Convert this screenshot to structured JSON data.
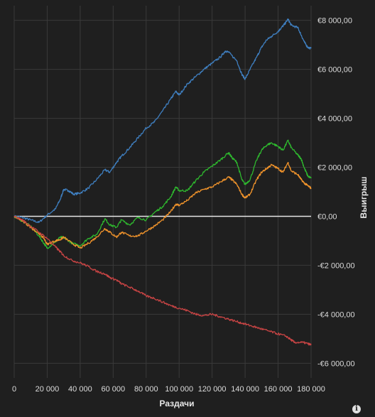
{
  "chart_data": {
    "type": "line",
    "xlabel": "Раздачи",
    "ylabel": "Выигрыш",
    "xlim": [
      0,
      180000
    ],
    "ylim": [
      -6600,
      8600
    ],
    "x_ticks": [
      0,
      20000,
      40000,
      60000,
      80000,
      100000,
      120000,
      140000,
      160000,
      180000
    ],
    "x_tick_labels": [
      "0",
      "20 000",
      "40 000",
      "60 000",
      "80 000",
      "100 000",
      "120 000",
      "140 000",
      "160 000",
      "180 000"
    ],
    "y_ticks": [
      -6000,
      -4000,
      -2000,
      0,
      2000,
      4000,
      6000,
      8000
    ],
    "y_tick_labels": [
      "-€6 000,00",
      "-€4 000,00",
      "-€2 000,00",
      "€0,00",
      "€2 000,00",
      "€4 000,00",
      "€6 000,00",
      "€8 000,00"
    ],
    "grid": true,
    "series": [
      {
        "color": "#3f7fc0",
        "points": [
          [
            0,
            0
          ],
          [
            5000,
            -50
          ],
          [
            10000,
            -150
          ],
          [
            15000,
            -250
          ],
          [
            20000,
            50
          ],
          [
            25000,
            300
          ],
          [
            28000,
            700
          ],
          [
            30000,
            1100
          ],
          [
            33000,
            1050
          ],
          [
            36000,
            900
          ],
          [
            40000,
            950
          ],
          [
            45000,
            1150
          ],
          [
            50000,
            1500
          ],
          [
            55000,
            1900
          ],
          [
            58000,
            1800
          ],
          [
            62000,
            2200
          ],
          [
            65000,
            2450
          ],
          [
            70000,
            2800
          ],
          [
            75000,
            3200
          ],
          [
            80000,
            3600
          ],
          [
            85000,
            3850
          ],
          [
            90000,
            4300
          ],
          [
            95000,
            4800
          ],
          [
            98000,
            5100
          ],
          [
            100000,
            4950
          ],
          [
            105000,
            5400
          ],
          [
            110000,
            5700
          ],
          [
            115000,
            6000
          ],
          [
            120000,
            6250
          ],
          [
            125000,
            6500
          ],
          [
            128000,
            6750
          ],
          [
            130000,
            6700
          ],
          [
            135000,
            6350
          ],
          [
            138000,
            5800
          ],
          [
            140000,
            5600
          ],
          [
            143000,
            6000
          ],
          [
            147000,
            6500
          ],
          [
            150000,
            6900
          ],
          [
            153000,
            7200
          ],
          [
            156000,
            7350
          ],
          [
            160000,
            7550
          ],
          [
            162000,
            7700
          ],
          [
            164000,
            7850
          ],
          [
            166000,
            8050
          ],
          [
            168000,
            7800
          ],
          [
            172000,
            7700
          ],
          [
            174000,
            7400
          ],
          [
            176000,
            7100
          ],
          [
            178000,
            6900
          ],
          [
            180000,
            6850
          ]
        ]
      },
      {
        "color": "#2eb82e",
        "points": [
          [
            0,
            0
          ],
          [
            5000,
            -200
          ],
          [
            10000,
            -400
          ],
          [
            15000,
            -800
          ],
          [
            18000,
            -1100
          ],
          [
            20000,
            -1300
          ],
          [
            24000,
            -1100
          ],
          [
            28000,
            -850
          ],
          [
            31000,
            -900
          ],
          [
            35000,
            -1100
          ],
          [
            40000,
            -1200
          ],
          [
            45000,
            -900
          ],
          [
            50000,
            -750
          ],
          [
            55000,
            -100
          ],
          [
            58000,
            -350
          ],
          [
            62000,
            -450
          ],
          [
            65000,
            -150
          ],
          [
            70000,
            -350
          ],
          [
            75000,
            -50
          ],
          [
            80000,
            -150
          ],
          [
            85000,
            150
          ],
          [
            90000,
            400
          ],
          [
            95000,
            800
          ],
          [
            98000,
            1200
          ],
          [
            100000,
            1050
          ],
          [
            105000,
            1050
          ],
          [
            110000,
            1450
          ],
          [
            115000,
            1800
          ],
          [
            120000,
            2050
          ],
          [
            125000,
            2300
          ],
          [
            130000,
            2600
          ],
          [
            132000,
            2400
          ],
          [
            135000,
            2200
          ],
          [
            138000,
            1500
          ],
          [
            140000,
            1300
          ],
          [
            143000,
            1500
          ],
          [
            147000,
            2300
          ],
          [
            150000,
            2700
          ],
          [
            153000,
            2900
          ],
          [
            156000,
            3000
          ],
          [
            160000,
            2850
          ],
          [
            163000,
            2700
          ],
          [
            166000,
            3100
          ],
          [
            168000,
            2800
          ],
          [
            172000,
            2500
          ],
          [
            174000,
            2350
          ],
          [
            176000,
            1950
          ],
          [
            178000,
            1650
          ],
          [
            180000,
            1550
          ]
        ]
      },
      {
        "color": "#f0932b",
        "points": [
          [
            0,
            0
          ],
          [
            5000,
            -200
          ],
          [
            10000,
            -450
          ],
          [
            15000,
            -700
          ],
          [
            18000,
            -900
          ],
          [
            20000,
            -1150
          ],
          [
            25000,
            -1000
          ],
          [
            28000,
            -950
          ],
          [
            30000,
            -850
          ],
          [
            35000,
            -1100
          ],
          [
            40000,
            -1300
          ],
          [
            45000,
            -1100
          ],
          [
            50000,
            -850
          ],
          [
            55000,
            -500
          ],
          [
            58000,
            -650
          ],
          [
            62000,
            -850
          ],
          [
            65000,
            -650
          ],
          [
            70000,
            -800
          ],
          [
            75000,
            -800
          ],
          [
            80000,
            -600
          ],
          [
            85000,
            -400
          ],
          [
            90000,
            -150
          ],
          [
            95000,
            200
          ],
          [
            98000,
            500
          ],
          [
            100000,
            450
          ],
          [
            105000,
            650
          ],
          [
            110000,
            950
          ],
          [
            115000,
            1100
          ],
          [
            120000,
            1200
          ],
          [
            125000,
            1400
          ],
          [
            130000,
            1600
          ],
          [
            132000,
            1500
          ],
          [
            135000,
            1300
          ],
          [
            138000,
            900
          ],
          [
            140000,
            750
          ],
          [
            143000,
            900
          ],
          [
            147000,
            1500
          ],
          [
            150000,
            1800
          ],
          [
            153000,
            1950
          ],
          [
            156000,
            2100
          ],
          [
            160000,
            1950
          ],
          [
            163000,
            1800
          ],
          [
            166000,
            2200
          ],
          [
            168000,
            1850
          ],
          [
            172000,
            1700
          ],
          [
            174000,
            1500
          ],
          [
            176000,
            1350
          ],
          [
            178000,
            1250
          ],
          [
            180000,
            1150
          ]
        ]
      },
      {
        "color": "#c84444",
        "points": [
          [
            0,
            0
          ],
          [
            5000,
            -150
          ],
          [
            10000,
            -400
          ],
          [
            15000,
            -650
          ],
          [
            20000,
            -900
          ],
          [
            25000,
            -1250
          ],
          [
            28000,
            -1450
          ],
          [
            30000,
            -1600
          ],
          [
            35000,
            -1800
          ],
          [
            40000,
            -1900
          ],
          [
            45000,
            -2050
          ],
          [
            50000,
            -2250
          ],
          [
            55000,
            -2350
          ],
          [
            58000,
            -2500
          ],
          [
            62000,
            -2600
          ],
          [
            65000,
            -2750
          ],
          [
            70000,
            -2900
          ],
          [
            75000,
            -3050
          ],
          [
            80000,
            -3250
          ],
          [
            85000,
            -3350
          ],
          [
            90000,
            -3500
          ],
          [
            95000,
            -3650
          ],
          [
            100000,
            -3750
          ],
          [
            105000,
            -3850
          ],
          [
            110000,
            -4000
          ],
          [
            115000,
            -4050
          ],
          [
            120000,
            -4000
          ],
          [
            125000,
            -4100
          ],
          [
            130000,
            -4200
          ],
          [
            135000,
            -4300
          ],
          [
            140000,
            -4400
          ],
          [
            145000,
            -4500
          ],
          [
            150000,
            -4600
          ],
          [
            155000,
            -4700
          ],
          [
            160000,
            -4800
          ],
          [
            165000,
            -4900
          ],
          [
            168000,
            -5050
          ],
          [
            170000,
            -5150
          ],
          [
            175000,
            -5150
          ],
          [
            178000,
            -5200
          ],
          [
            180000,
            -5250
          ]
        ]
      }
    ]
  },
  "info_icon": "info-icon"
}
